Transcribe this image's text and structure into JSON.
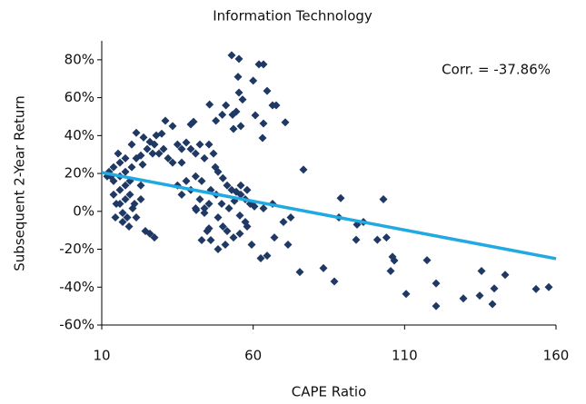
{
  "chart_data": {
    "type": "scatter",
    "title": "Information Technology",
    "x_label": "CAPE Ratio",
    "y_label": "Subsequent 2-Year Return",
    "annotation": "Corr. = -37.86%",
    "color": "#1f3864",
    "xlim": [
      10,
      160
    ],
    "xticks": [
      10,
      60,
      110,
      160
    ],
    "ylim": [
      -60,
      90
    ],
    "yticks": [
      {
        "value": -60,
        "label": "-60%"
      },
      {
        "value": -40,
        "label": "-40%"
      },
      {
        "value": -20,
        "label": "-20%"
      },
      {
        "value": 0,
        "label": "0%"
      },
      {
        "value": 20,
        "label": "20%"
      },
      {
        "value": 40,
        "label": "40%"
      },
      {
        "value": 60,
        "label": "60%"
      },
      {
        "value": 80,
        "label": "80%"
      }
    ],
    "grid": false,
    "trendline": {
      "color": "#21a9e1",
      "x": [
        10,
        160
      ],
      "y": [
        20.5,
        -25
      ]
    },
    "x": [
      75.4,
      76.6,
      83.2,
      86.8,
      88.3,
      88.9,
      94.3,
      96.4,
      94,
      101,
      103,
      104,
      106,
      106.6,
      105.4,
      110.5,
      117.4,
      120.4,
      120.4,
      129.4,
      134.8,
      135.4,
      139.6,
      139,
      143.2,
      153.4,
      157.6,
      52.9,
      55.3,
      61.9,
      63.4,
      55,
      60,
      64.6,
      66.4,
      67.6,
      55.3,
      56.5,
      53.2,
      54.4,
      45.6,
      47.7,
      49.8,
      51,
      53.5,
      55.9,
      63.1,
      70.6,
      60.7,
      63.4,
      47.5,
      48.4,
      50,
      51.4,
      52.9,
      54.4,
      55.9,
      57.4,
      59,
      60.4,
      63.4,
      66.4,
      48.4,
      50,
      51.4,
      50.8,
      48.4,
      53.5,
      55.6,
      58,
      59.5,
      62.5,
      64.6,
      67,
      70,
      71.5,
      72.4,
      55.6,
      57.4,
      45.4,
      43.9,
      46,
      42.4,
      41.2,
      47.8,
      49.6,
      52,
      53.8,
      55.9,
      58,
      39.4,
      40.3,
      31,
      29.8,
      33.4,
      35,
      36.4,
      37.9,
      39.4,
      41,
      42.4,
      45.4,
      43.9,
      46.9,
      36.4,
      37.9,
      41,
      43,
      35,
      39.4,
      36.4,
      41,
      43.9,
      44.8,
      46,
      43,
      45.4,
      21.4,
      23.8,
      25.9,
      27.4,
      28,
      25,
      26.8,
      28.9,
      30.4,
      31.9,
      33.4,
      22.9,
      21.4,
      19.9,
      23.5,
      12.4,
      13.9,
      13.9,
      13.9,
      14.8,
      15.4,
      16,
      16,
      16,
      16,
      16.9,
      17.8,
      17.8,
      17.8,
      17.8,
      18.4,
      19.3,
      19.3,
      20.2,
      19.9,
      20.8,
      21.4,
      22.9,
      22.9,
      24.4,
      25.9,
      27.4,
      13,
      14.5,
      16.9,
      19,
      11.8
    ],
    "values": [
      -32,
      22,
      -30,
      -37,
      -3.2,
      7,
      -7,
      -5.6,
      -15,
      -15,
      6.4,
      -13.8,
      -24,
      -26,
      -31.5,
      -43.6,
      -25.8,
      -38,
      -50,
      -46,
      -44.5,
      -31.5,
      -40.7,
      -49,
      -33.5,
      -41,
      -40,
      82.4,
      80.5,
      77.6,
      77.6,
      71,
      69,
      63.6,
      56,
      56,
      62.7,
      59,
      51,
      52.6,
      56.4,
      47.8,
      51,
      56,
      43.5,
      45,
      38.7,
      47,
      50.7,
      46.4,
      23.3,
      20.9,
      17.5,
      13.7,
      11.3,
      10.3,
      8.8,
      6.4,
      4,
      2.6,
      1.6,
      4,
      -3.2,
      -8,
      -10.4,
      -17.6,
      -20,
      -13.8,
      -11.8,
      -8,
      -17.6,
      -24.8,
      -23.4,
      -13.8,
      -5.6,
      -17.6,
      -3.2,
      -2.2,
      -5.6,
      4,
      1.6,
      11.3,
      6.4,
      0.7,
      8.8,
      4,
      1.6,
      5.5,
      13.7,
      11.3,
      45.9,
      47.3,
      47.8,
      41,
      45,
      35.3,
      32.9,
      36.3,
      32.9,
      30.5,
      35.3,
      35.3,
      28,
      30.5,
      25.7,
      16,
      18.5,
      16,
      13.7,
      11.3,
      8.8,
      1.6,
      -0.8,
      -10.4,
      -15.2,
      -15.2,
      -9,
      41.5,
      39,
      36.7,
      35.3,
      40.1,
      32.9,
      30.5,
      30.5,
      32.9,
      28,
      25.7,
      29.5,
      28,
      35.3,
      24.7,
      20.9,
      23.3,
      16,
      8.8,
      4,
      30.5,
      25.7,
      18.5,
      11.3,
      4,
      -0.8,
      28,
      20.9,
      13.7,
      6.4,
      -3.2,
      16,
      8.8,
      1.6,
      23.3,
      4,
      -3.2,
      13.7,
      6.4,
      -10.4,
      -11.8,
      -13.8,
      18.5,
      -3.2,
      -5.6,
      -8,
      18.5
    ]
  }
}
